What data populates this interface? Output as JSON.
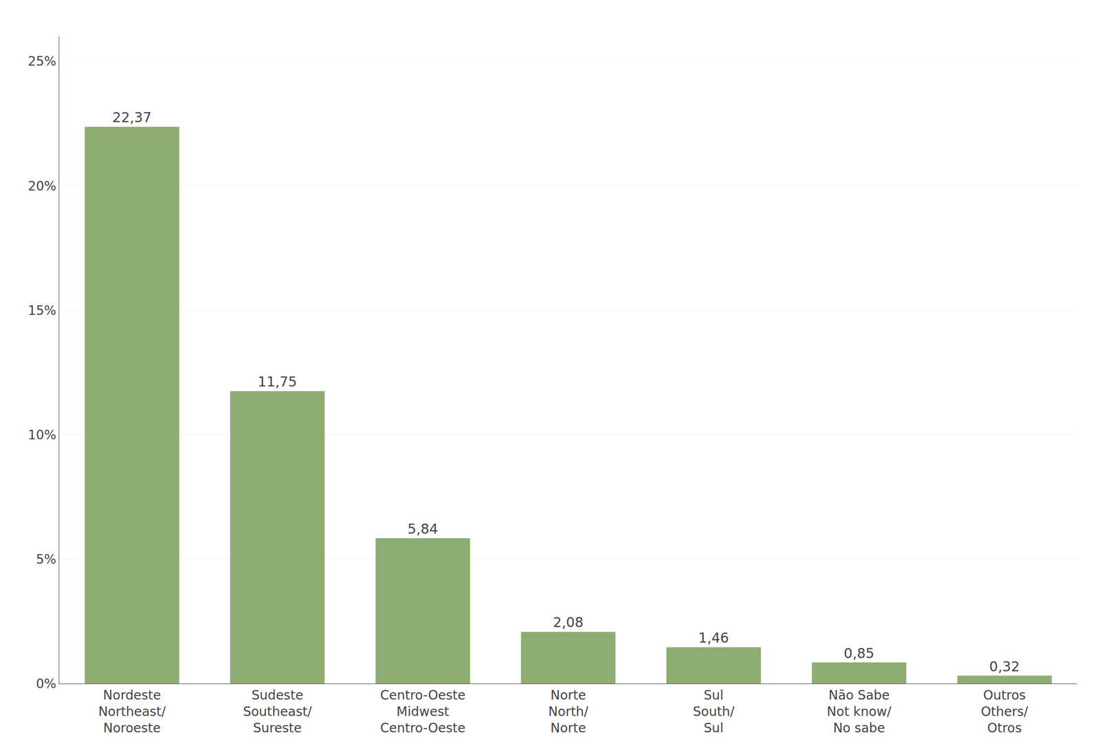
{
  "chart_data": {
    "type": "bar",
    "categories": [
      "Nordeste\nNortheast/\nNoroeste",
      "Sudeste\nSoutheast/\nSureste",
      "Centro-Oeste\nMidwest\nCentro-Oeste",
      "Norte\nNorth/\nNorte",
      "Sul\nSouth/\nSul",
      "Não Sabe\nNot know/\nNo sabe",
      "Outros\nOthers/\nOtros"
    ],
    "values": [
      22.37,
      11.75,
      5.84,
      2.08,
      1.46,
      0.85,
      0.32
    ],
    "value_labels": [
      "22,37",
      "11,75",
      "5,84",
      "2,08",
      "1,46",
      "0,85",
      "0,32"
    ],
    "data_labels": true,
    "color": "#8fad72",
    "ylim": [
      0,
      26
    ],
    "yticks": [
      {
        "value": 0,
        "label": "0%"
      },
      {
        "value": 5,
        "label": "5%"
      },
      {
        "value": 10,
        "label": "10%"
      },
      {
        "value": 15,
        "label": "15%"
      },
      {
        "value": 20,
        "label": "20%"
      },
      {
        "value": 25,
        "label": "25%"
      }
    ],
    "grid": true
  }
}
